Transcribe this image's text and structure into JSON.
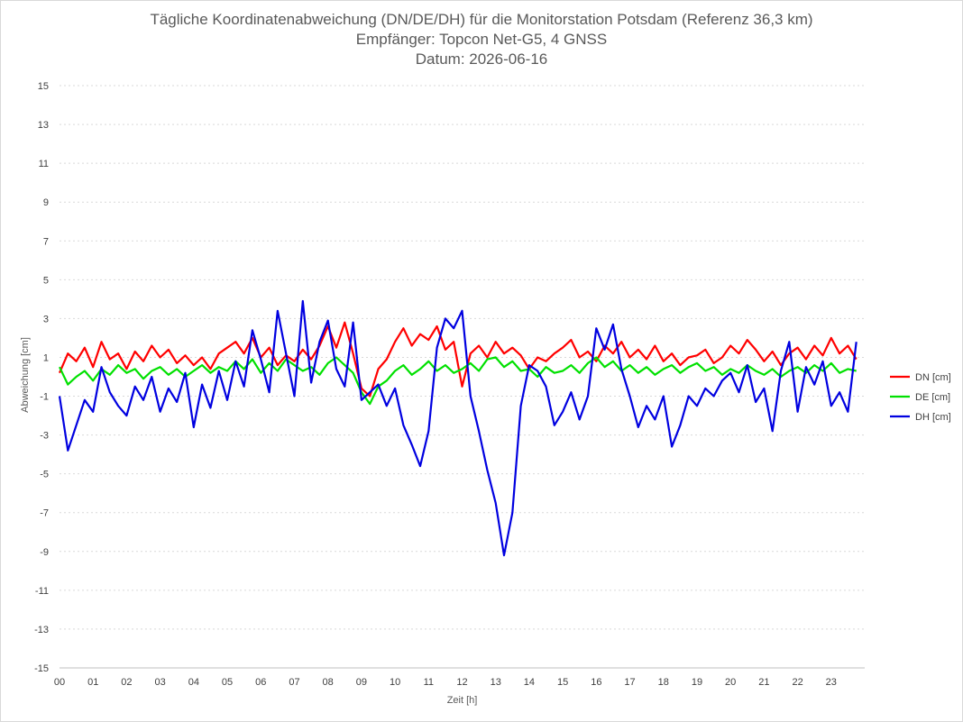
{
  "chart_data": {
    "type": "line",
    "title": "Tägliche Koordinatenabweichung (DN/DE/DH) für die Monitorstation Potsdam (Referenz 36,3 km)",
    "subtitle1": "Empfänger: Topcon Net-G5, 4 GNSS",
    "subtitle2": "Datum: 2026-06-16",
    "xlabel": "Zeit [h]",
    "ylabel": "Abweichung [cm]",
    "xlim": [
      0,
      24
    ],
    "ylim": [
      -15,
      15
    ],
    "x_ticks": [
      "00",
      "01",
      "02",
      "03",
      "04",
      "05",
      "06",
      "07",
      "08",
      "09",
      "10",
      "11",
      "12",
      "13",
      "14",
      "15",
      "16",
      "17",
      "18",
      "19",
      "20",
      "21",
      "22",
      "23"
    ],
    "y_ticks": [
      15,
      13,
      11,
      9,
      7,
      5,
      3,
      1,
      -1,
      -3,
      -5,
      -7,
      -9,
      -11,
      -13,
      -15
    ],
    "grid": true,
    "legend_position": "right",
    "series": [
      {
        "name": "DN [cm]",
        "color": "#ff0000",
        "x": [
          0,
          0.25,
          0.5,
          0.75,
          1,
          1.25,
          1.5,
          1.75,
          2,
          2.25,
          2.5,
          2.75,
          3,
          3.25,
          3.5,
          3.75,
          4,
          4.25,
          4.5,
          4.75,
          5,
          5.25,
          5.5,
          5.75,
          6,
          6.25,
          6.5,
          6.75,
          7,
          7.25,
          7.5,
          7.75,
          8,
          8.25,
          8.5,
          8.75,
          9,
          9.25,
          9.5,
          9.75,
          10,
          10.25,
          10.5,
          10.75,
          11,
          11.25,
          11.5,
          11.75,
          12,
          12.25,
          12.5,
          12.75,
          13,
          13.25,
          13.5,
          13.75,
          14,
          14.25,
          14.5,
          14.75,
          15,
          15.25,
          15.5,
          15.75,
          16,
          16.25,
          16.5,
          16.75,
          17,
          17.25,
          17.5,
          17.75,
          18,
          18.25,
          18.5,
          18.75,
          19,
          19.25,
          19.5,
          19.75,
          20,
          20.25,
          20.5,
          20.75,
          21,
          21.25,
          21.5,
          21.75,
          22,
          22.25,
          22.5,
          22.75,
          23,
          23.25,
          23.5,
          23.75
        ],
        "values": [
          0.2,
          1.2,
          0.8,
          1.5,
          0.5,
          1.8,
          0.9,
          1.2,
          0.4,
          1.3,
          0.8,
          1.6,
          1.0,
          1.4,
          0.7,
          1.1,
          0.6,
          1.0,
          0.4,
          1.2,
          1.5,
          1.8,
          1.2,
          2.0,
          1.0,
          1.5,
          0.6,
          1.1,
          0.8,
          1.4,
          0.9,
          1.6,
          2.6,
          1.5,
          2.8,
          1.2,
          -0.6,
          -1.0,
          0.4,
          0.9,
          1.8,
          2.5,
          1.6,
          2.2,
          1.9,
          2.6,
          1.4,
          1.8,
          -0.5,
          1.2,
          1.6,
          1.0,
          1.8,
          1.2,
          1.5,
          1.1,
          0.4,
          1.0,
          0.8,
          1.2,
          1.5,
          1.9,
          1.0,
          1.3,
          0.8,
          1.6,
          1.2,
          1.8,
          1.0,
          1.4,
          0.9,
          1.6,
          0.8,
          1.2,
          0.6,
          1.0,
          1.1,
          1.4,
          0.7,
          1.0,
          1.6,
          1.2,
          1.9,
          1.4,
          0.8,
          1.3,
          0.6,
          1.2,
          1.5,
          0.9,
          1.6,
          1.1,
          2.0,
          1.2,
          1.6,
          0.9
        ]
      },
      {
        "name": "DE [cm]",
        "color": "#00e000",
        "x": [
          0,
          0.25,
          0.5,
          0.75,
          1,
          1.25,
          1.5,
          1.75,
          2,
          2.25,
          2.5,
          2.75,
          3,
          3.25,
          3.5,
          3.75,
          4,
          4.25,
          4.5,
          4.75,
          5,
          5.25,
          5.5,
          5.75,
          6,
          6.25,
          6.5,
          6.75,
          7,
          7.25,
          7.5,
          7.75,
          8,
          8.25,
          8.5,
          8.75,
          9,
          9.25,
          9.5,
          9.75,
          10,
          10.25,
          10.5,
          10.75,
          11,
          11.25,
          11.5,
          11.75,
          12,
          12.25,
          12.5,
          12.75,
          13,
          13.25,
          13.5,
          13.75,
          14,
          14.25,
          14.5,
          14.75,
          15,
          15.25,
          15.5,
          15.75,
          16,
          16.25,
          16.5,
          16.75,
          17,
          17.25,
          17.5,
          17.75,
          18,
          18.25,
          18.5,
          18.75,
          19,
          19.25,
          19.5,
          19.75,
          20,
          20.25,
          20.5,
          20.75,
          21,
          21.25,
          21.5,
          21.75,
          22,
          22.25,
          22.5,
          22.75,
          23,
          23.25,
          23.5,
          23.75
        ],
        "values": [
          0.5,
          -0.4,
          0.0,
          0.3,
          -0.2,
          0.4,
          0.1,
          0.6,
          0.2,
          0.4,
          -0.1,
          0.3,
          0.5,
          0.1,
          0.4,
          0.0,
          0.3,
          0.6,
          0.2,
          0.5,
          0.3,
          0.8,
          0.4,
          0.9,
          0.2,
          0.7,
          0.3,
          0.9,
          0.6,
          0.3,
          0.5,
          0.1,
          0.7,
          1.0,
          0.6,
          0.2,
          -0.8,
          -1.4,
          -0.5,
          -0.2,
          0.3,
          0.6,
          0.1,
          0.4,
          0.8,
          0.3,
          0.6,
          0.2,
          0.4,
          0.7,
          0.3,
          0.9,
          1.0,
          0.5,
          0.8,
          0.3,
          0.4,
          0.0,
          0.5,
          0.2,
          0.3,
          0.6,
          0.2,
          0.7,
          1.0,
          0.5,
          0.8,
          0.3,
          0.6,
          0.2,
          0.5,
          0.1,
          0.4,
          0.6,
          0.2,
          0.5,
          0.7,
          0.3,
          0.5,
          0.1,
          0.4,
          0.2,
          0.6,
          0.3,
          0.1,
          0.4,
          0.0,
          0.3,
          0.5,
          0.2,
          0.6,
          0.3,
          0.7,
          0.2,
          0.4,
          0.3
        ]
      },
      {
        "name": "DH [cm]",
        "color": "#0000e0",
        "x": [
          0,
          0.25,
          0.5,
          0.75,
          1,
          1.25,
          1.5,
          1.75,
          2,
          2.25,
          2.5,
          2.75,
          3,
          3.25,
          3.5,
          3.75,
          4,
          4.25,
          4.5,
          4.75,
          5,
          5.25,
          5.5,
          5.75,
          6,
          6.25,
          6.5,
          6.75,
          7,
          7.25,
          7.5,
          7.75,
          8,
          8.25,
          8.5,
          8.75,
          9,
          9.25,
          9.5,
          9.75,
          10,
          10.25,
          10.5,
          10.75,
          11,
          11.25,
          11.5,
          11.75,
          12,
          12.25,
          12.5,
          12.75,
          13,
          13.25,
          13.5,
          13.75,
          14,
          14.25,
          14.5,
          14.75,
          15,
          15.25,
          15.5,
          15.75,
          16,
          16.25,
          16.5,
          16.75,
          17,
          17.25,
          17.5,
          17.75,
          18,
          18.25,
          18.5,
          18.75,
          19,
          19.25,
          19.5,
          19.75,
          20,
          20.25,
          20.5,
          20.75,
          21,
          21.25,
          21.5,
          21.75,
          22,
          22.25,
          22.5,
          22.75,
          23,
          23.25,
          23.5,
          23.75
        ],
        "values": [
          -1.0,
          -3.8,
          -2.5,
          -1.2,
          -1.8,
          0.5,
          -0.8,
          -1.5,
          -2.0,
          -0.5,
          -1.2,
          0.0,
          -1.8,
          -0.6,
          -1.3,
          0.2,
          -2.6,
          -0.4,
          -1.6,
          0.3,
          -1.2,
          0.8,
          -0.5,
          2.4,
          0.9,
          -0.8,
          3.4,
          1.2,
          -1.0,
          3.9,
          -0.3,
          1.8,
          2.9,
          0.4,
          -0.5,
          2.8,
          -1.2,
          -0.8,
          -0.4,
          -1.5,
          -0.6,
          -2.5,
          -3.5,
          -4.6,
          -2.8,
          1.5,
          3.0,
          2.5,
          3.4,
          -1.0,
          -2.8,
          -4.8,
          -6.5,
          -9.2,
          -7.0,
          -1.5,
          0.6,
          0.3,
          -0.5,
          -2.5,
          -1.8,
          -0.8,
          -2.2,
          -1.0,
          2.5,
          1.4,
          2.7,
          0.4,
          -1.0,
          -2.6,
          -1.5,
          -2.2,
          -1.0,
          -3.6,
          -2.5,
          -1.0,
          -1.5,
          -0.6,
          -1.0,
          -0.2,
          0.2,
          -0.8,
          0.6,
          -1.3,
          -0.6,
          -2.8,
          0.3,
          1.8,
          -1.8,
          0.5,
          -0.4,
          0.8,
          -1.5,
          -0.8,
          -1.8,
          1.8
        ]
      }
    ]
  }
}
